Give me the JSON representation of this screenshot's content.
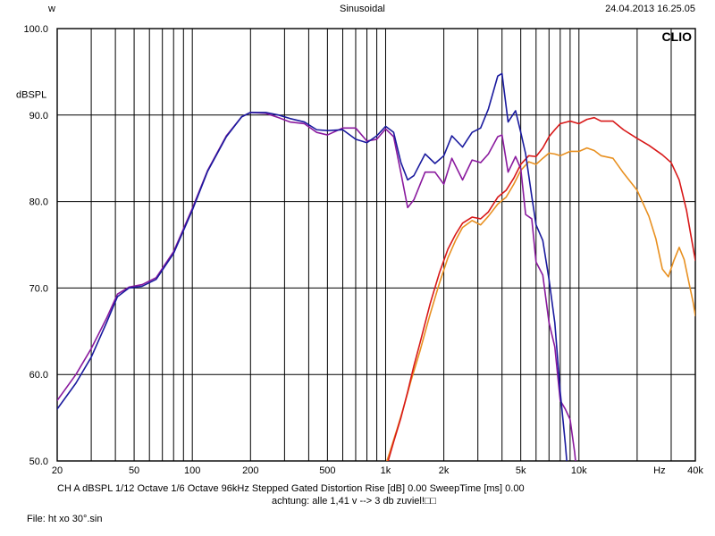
{
  "header": {
    "left": "w",
    "center": "Sinusoidal",
    "right": "24.04.2013 16.25.05"
  },
  "brand": "CLIO",
  "axes": {
    "ylabel": "dBSPL",
    "ylim": [
      50.0,
      100.0
    ],
    "ytick_step": 10.0,
    "ytick_labels": [
      "50.0",
      "60.0",
      "70.0",
      "80.0",
      "90.0",
      "100.0"
    ],
    "xlim_hz": [
      20,
      40000
    ],
    "xtick_hz": [
      20,
      50,
      100,
      200,
      500,
      1000,
      2000,
      5000,
      10000,
      40000
    ],
    "xtick_labels": [
      "20",
      "50",
      "100",
      "200",
      "500",
      "1k",
      "2k",
      "5k",
      "10k",
      "40k"
    ],
    "xlabel_at_20k": "Hz",
    "minor_gridlines_hz": [
      30,
      40,
      60,
      70,
      80,
      90,
      300,
      400,
      600,
      700,
      800,
      900,
      3000,
      4000,
      6000,
      7000,
      8000,
      9000,
      20000,
      30000
    ],
    "grid_color": "#000000",
    "background_color": "#ffffff",
    "label_fontsize": 11
  },
  "footer": {
    "line1": "CH A   dBSPL   1/12 Octave   1/6 Octave   96kHz   Stepped    Gated   Distortion Rise [dB] 0.00    SweepTime [ms] 0.00",
    "line2": "achtung: alle 1,41 v --> 3 db zuviel!□□",
    "line3": "File: ht xo 30°.sin"
  },
  "series": {
    "line_width": 1.6,
    "blue": {
      "color": "#1a1a9e",
      "points_hz_db": [
        [
          20,
          56
        ],
        [
          25,
          59
        ],
        [
          30,
          62
        ],
        [
          36,
          66
        ],
        [
          41,
          69
        ],
        [
          47,
          70
        ],
        [
          55,
          70.2
        ],
        [
          65,
          71
        ],
        [
          80,
          74
        ],
        [
          100,
          79
        ],
        [
          120,
          83.5
        ],
        [
          150,
          87.5
        ],
        [
          180,
          89.8
        ],
        [
          200,
          90.3
        ],
        [
          240,
          90.3
        ],
        [
          280,
          90
        ],
        [
          320,
          89.6
        ],
        [
          380,
          89.2
        ],
        [
          440,
          88.3
        ],
        [
          500,
          88.2
        ],
        [
          600,
          88.3
        ],
        [
          700,
          87.2
        ],
        [
          800,
          86.8
        ],
        [
          900,
          87.6
        ],
        [
          1000,
          88.7
        ],
        [
          1100,
          88
        ],
        [
          1200,
          84.5
        ],
        [
          1300,
          82.5
        ],
        [
          1400,
          83
        ],
        [
          1600,
          85.5
        ],
        [
          1800,
          84.4
        ],
        [
          2000,
          85.3
        ],
        [
          2200,
          87.6
        ],
        [
          2500,
          86.3
        ],
        [
          2800,
          88
        ],
        [
          3100,
          88.5
        ],
        [
          3400,
          90.7
        ],
        [
          3800,
          94.5
        ],
        [
          4000,
          94.8
        ],
        [
          4300,
          89.2
        ],
        [
          4700,
          90.5
        ],
        [
          5000,
          88
        ],
        [
          5300,
          85.5
        ],
        [
          5700,
          80.6
        ],
        [
          6000,
          77.3
        ],
        [
          6500,
          75.5
        ],
        [
          7000,
          71
        ],
        [
          7500,
          66
        ],
        [
          8000,
          58
        ],
        [
          8500,
          52
        ],
        [
          8800,
          48
        ]
      ]
    },
    "purple": {
      "color": "#8a1a9e",
      "points_hz_db": [
        [
          20,
          57
        ],
        [
          25,
          60
        ],
        [
          30,
          63
        ],
        [
          36,
          66.5
        ],
        [
          41,
          69.3
        ],
        [
          47,
          70.1
        ],
        [
          55,
          70.4
        ],
        [
          65,
          71.2
        ],
        [
          80,
          74.2
        ],
        [
          100,
          79.2
        ],
        [
          120,
          83.6
        ],
        [
          150,
          87.6
        ],
        [
          180,
          89.8
        ],
        [
          200,
          90.3
        ],
        [
          240,
          90.2
        ],
        [
          280,
          89.7
        ],
        [
          320,
          89.2
        ],
        [
          380,
          89
        ],
        [
          440,
          88
        ],
        [
          500,
          87.7
        ],
        [
          600,
          88.5
        ],
        [
          700,
          88.5
        ],
        [
          800,
          87
        ],
        [
          900,
          87.2
        ],
        [
          1000,
          88.4
        ],
        [
          1100,
          87.5
        ],
        [
          1200,
          83.3
        ],
        [
          1300,
          79.3
        ],
        [
          1400,
          80.2
        ],
        [
          1600,
          83.4
        ],
        [
          1800,
          83.4
        ],
        [
          2000,
          82
        ],
        [
          2200,
          85
        ],
        [
          2500,
          82.5
        ],
        [
          2800,
          84.8
        ],
        [
          3100,
          84.5
        ],
        [
          3400,
          85.5
        ],
        [
          3800,
          87.5
        ],
        [
          4000,
          87.7
        ],
        [
          4300,
          83.4
        ],
        [
          4700,
          85.2
        ],
        [
          5000,
          83.8
        ],
        [
          5300,
          78.5
        ],
        [
          5700,
          78
        ],
        [
          6000,
          73
        ],
        [
          6500,
          71.5
        ],
        [
          7000,
          66
        ],
        [
          7500,
          63.2
        ],
        [
          8000,
          57
        ],
        [
          8500,
          56
        ],
        [
          9000,
          54.8
        ],
        [
          9500,
          51
        ],
        [
          9800,
          48
        ]
      ]
    },
    "red": {
      "color": "#d81818",
      "points_hz_db": [
        [
          1000,
          49
        ],
        [
          1100,
          52.2
        ],
        [
          1200,
          55
        ],
        [
          1300,
          58
        ],
        [
          1400,
          61
        ],
        [
          1500,
          63.5
        ],
        [
          1700,
          68.2
        ],
        [
          1900,
          71.8
        ],
        [
          2100,
          74.5
        ],
        [
          2300,
          76.2
        ],
        [
          2500,
          77.5
        ],
        [
          2800,
          78.2
        ],
        [
          3100,
          78
        ],
        [
          3400,
          78.8
        ],
        [
          3800,
          80.5
        ],
        [
          4200,
          81.3
        ],
        [
          4600,
          82.7
        ],
        [
          5000,
          84.3
        ],
        [
          5500,
          85.3
        ],
        [
          6000,
          85.2
        ],
        [
          6500,
          86.2
        ],
        [
          7000,
          87.5
        ],
        [
          7500,
          88.3
        ],
        [
          8000,
          89
        ],
        [
          9000,
          89.3
        ],
        [
          10000,
          89
        ],
        [
          11000,
          89.5
        ],
        [
          12000,
          89.7
        ],
        [
          13000,
          89.3
        ],
        [
          15000,
          89.3
        ],
        [
          17000,
          88.3
        ],
        [
          20000,
          87.3
        ],
        [
          23000,
          86.5
        ],
        [
          27000,
          85.4
        ],
        [
          30000,
          84.5
        ],
        [
          33000,
          82.5
        ],
        [
          36000,
          79
        ],
        [
          38000,
          76
        ],
        [
          40000,
          73.2
        ]
      ]
    },
    "orange": {
      "color": "#e89020",
      "points_hz_db": [
        [
          950,
          48
        ],
        [
          1050,
          51
        ],
        [
          1150,
          53.8
        ],
        [
          1250,
          56.5
        ],
        [
          1350,
          59.2
        ],
        [
          1500,
          62.6
        ],
        [
          1700,
          67
        ],
        [
          1900,
          70.6
        ],
        [
          2100,
          73.5
        ],
        [
          2300,
          75.5
        ],
        [
          2500,
          77
        ],
        [
          2800,
          77.8
        ],
        [
          3100,
          77.3
        ],
        [
          3400,
          78.3
        ],
        [
          3800,
          79.7
        ],
        [
          4200,
          80.5
        ],
        [
          4600,
          82
        ],
        [
          5000,
          83.6
        ],
        [
          5500,
          84.6
        ],
        [
          6000,
          84.3
        ],
        [
          6500,
          85
        ],
        [
          7000,
          85.6
        ],
        [
          7500,
          85.5
        ],
        [
          8000,
          85.3
        ],
        [
          9000,
          85.8
        ],
        [
          10000,
          85.8
        ],
        [
          11000,
          86.2
        ],
        [
          12000,
          85.9
        ],
        [
          13000,
          85.3
        ],
        [
          15000,
          85
        ],
        [
          17000,
          83.3
        ],
        [
          20000,
          81.3
        ],
        [
          23000,
          78.3
        ],
        [
          25000,
          75.7
        ],
        [
          27000,
          72.2
        ],
        [
          29000,
          71.3
        ],
        [
          31000,
          73.2
        ],
        [
          33000,
          74.7
        ],
        [
          35000,
          73.3
        ],
        [
          37000,
          70.7
        ],
        [
          39000,
          68.3
        ],
        [
          40000,
          66.8
        ]
      ]
    }
  }
}
